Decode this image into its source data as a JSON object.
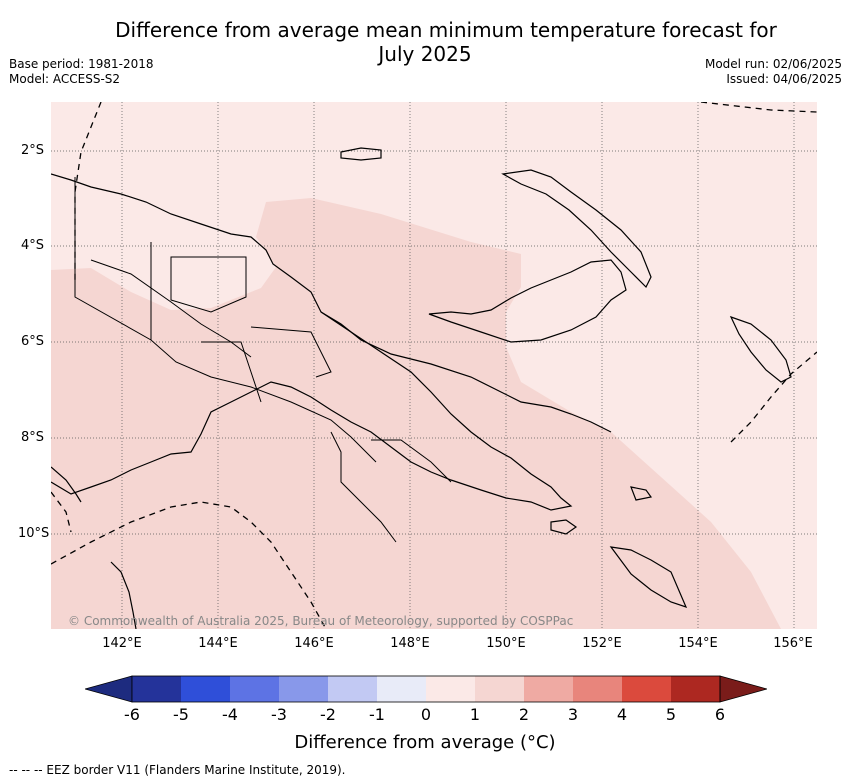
{
  "title": {
    "line1": "Difference from average mean minimum temperature forecast for",
    "line2": "July 2025"
  },
  "meta": {
    "base_period": "Base period: 1981-2018",
    "model": "Model: ACCESS-S2",
    "model_run": "Model run: 02/06/2025",
    "issued": "Issued: 04/06/2025"
  },
  "map": {
    "lat_labels": [
      "2°S",
      "4°S",
      "6°S",
      "8°S",
      "10°S"
    ],
    "lon_labels": [
      "142°E",
      "144°E",
      "146°E",
      "148°E",
      "150°E",
      "152°E",
      "154°E",
      "156°E"
    ],
    "copyright": "© Commonwealth of Australia 2025, Bureau of Meteorology, supported by COSPPac",
    "regions": [
      {
        "class": "0 to 1",
        "color": "#fbe9e7"
      },
      {
        "class": "1 to 2",
        "color": "#f5d6d2"
      }
    ]
  },
  "colorbar": {
    "title": "Difference from average (°C)",
    "tick_labels": [
      "-6",
      "-5",
      "-4",
      "-3",
      "-2",
      "-1",
      "0",
      "1",
      "2",
      "3",
      "4",
      "5",
      "6"
    ],
    "colors": [
      "#24339a",
      "#2f4fd9",
      "#5d73e4",
      "#8898ea",
      "#c2c9f3",
      "#e8ebf8",
      "#fbe9e7",
      "#f5d6d2",
      "#efaaa3",
      "#e8857c",
      "#db4a3d",
      "#ad2821"
    ],
    "under_color": "#1d2b7f",
    "over_color": "#7a1c1a"
  },
  "legend": {
    "eez": "--  --  -- EEZ border V11 (Flanders Marine Institute, 2019)."
  }
}
